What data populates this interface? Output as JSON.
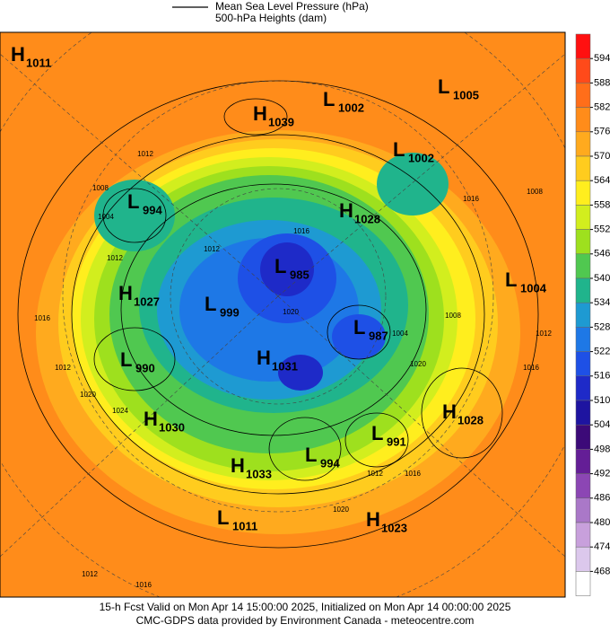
{
  "header": {
    "legend_lines": [
      "Mean Sea Level Pressure (hPa)",
      "500-hPa Heights (dam)"
    ]
  },
  "colorbar": {
    "ticks": [
      594,
      588,
      582,
      576,
      570,
      564,
      558,
      552,
      546,
      540,
      534,
      528,
      522,
      516,
      510,
      504,
      498,
      492,
      486,
      480,
      474,
      468
    ],
    "colors": [
      "#ff1010",
      "#ff4a1a",
      "#ff6e1a",
      "#ff8c1a",
      "#ffaa1e",
      "#ffcc1e",
      "#ffee1e",
      "#d2ee1e",
      "#9ee01e",
      "#50c850",
      "#20b48c",
      "#1e9ad2",
      "#1e78e6",
      "#1e50e6",
      "#1e2ac8",
      "#1e14a0",
      "#3c0a78",
      "#641e96",
      "#8c46b4",
      "#aa78c8",
      "#c8a0dc",
      "#dcc8ec",
      "#ffffff"
    ]
  },
  "centers": [
    {
      "kind": "H",
      "value": 1011
    },
    {
      "kind": "L",
      "value": 1005
    },
    {
      "kind": "L",
      "value": 1002
    },
    {
      "kind": "H",
      "value": 1039
    },
    {
      "kind": "L",
      "value": 1002
    },
    {
      "kind": "L",
      "value": 994
    },
    {
      "kind": "H",
      "value": 1028
    },
    {
      "kind": "L",
      "value": 985
    },
    {
      "kind": "L",
      "value": 1004
    },
    {
      "kind": "H",
      "value": 1027
    },
    {
      "kind": "L",
      "value": 999
    },
    {
      "kind": "L",
      "value": 987
    },
    {
      "kind": "L",
      "value": 990
    },
    {
      "kind": "H",
      "value": 1031
    },
    {
      "kind": "H",
      "value": 1028
    },
    {
      "kind": "H",
      "value": 1030
    },
    {
      "kind": "L",
      "value": 991
    },
    {
      "kind": "L",
      "value": 994
    },
    {
      "kind": "H",
      "value": 1033
    },
    {
      "kind": "L",
      "value": 1011
    },
    {
      "kind": "H",
      "value": 1023
    }
  ],
  "contour_labels": [
    1012,
    1008,
    1004,
    1012,
    1016,
    1012,
    1012,
    1016,
    1020,
    1024,
    1020,
    1016,
    1008,
    1004,
    1020,
    1012,
    1016,
    1020,
    1016,
    1012,
    1016,
    1008,
    1012
  ],
  "footer": {
    "lines": [
      "15-h Fcst Valid on Mon Apr 14 15:00:00 2025, Initialized on Mon Apr 14 00:00:00 2025",
      "CMC-GDPS data provided by Environment Canada - meteocentre.com"
    ]
  }
}
